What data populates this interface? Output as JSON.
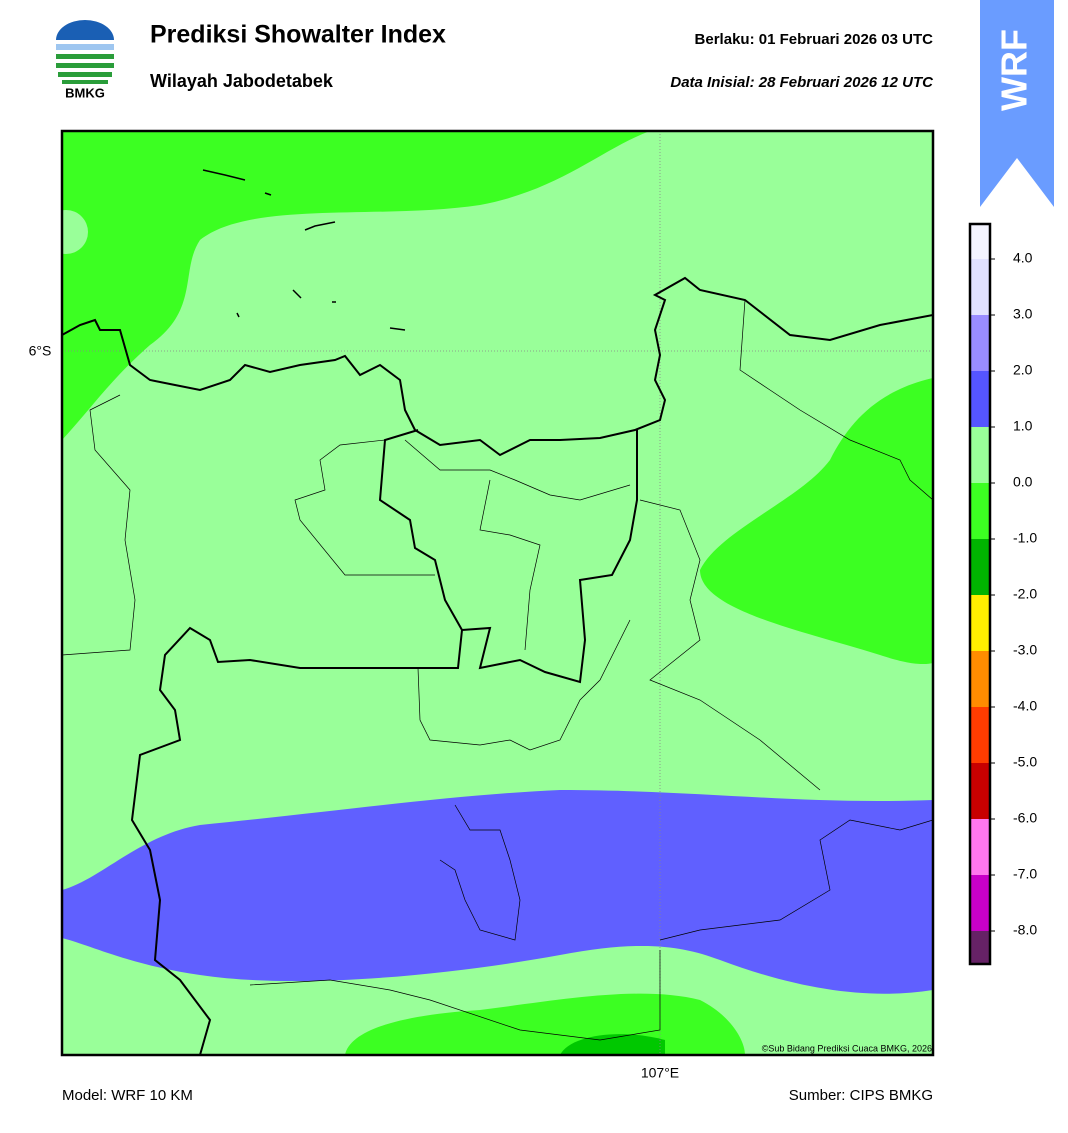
{
  "header": {
    "logo_text": "BMKG",
    "title": "Prediksi Showalter Index",
    "subtitle": "Wilayah Jabodetabek",
    "valid": "Berlaku:  01 Februari 2026 03 UTC",
    "initial": "Data Inisial:  28 Februari 2026 12 UTC",
    "badge": "WRF"
  },
  "map": {
    "lat_label": "6°S",
    "lon_label": "107°E",
    "copyright": "©Sub Bidang Prediksi Cuaca BMKG, 2026"
  },
  "colorbar": {
    "labels": [
      "4.0",
      "3.0",
      "2.0",
      "1.0",
      "0.0",
      "-1.0",
      "-2.0",
      "-3.0",
      "-4.0",
      "-5.0",
      "-6.0",
      "-7.0",
      "-8.0"
    ],
    "colors": [
      "#f4f4ff",
      "#e2e2ff",
      "#9a8cff",
      "#5555ff",
      "#99ff99",
      "#3cff22",
      "#00b400",
      "#ffee00",
      "#ff8c00",
      "#ff3c00",
      "#c80000",
      "#ff77ee",
      "#c800c8",
      "#662266"
    ]
  },
  "footer": {
    "model": "Model: WRF 10 KM",
    "source": "Sumber: CIPS BMKG"
  }
}
